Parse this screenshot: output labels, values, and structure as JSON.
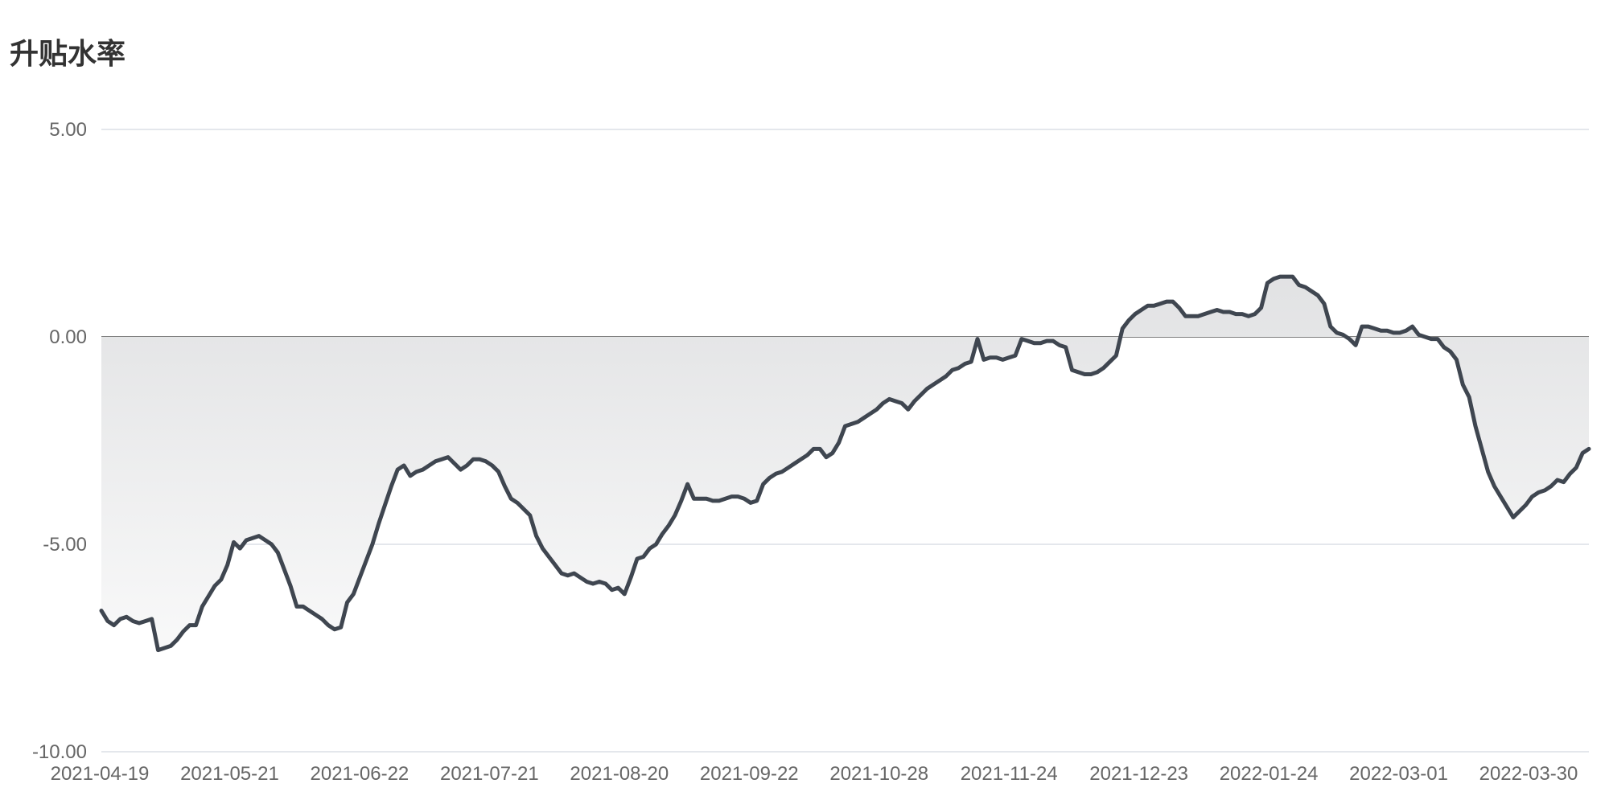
{
  "chart_data": {
    "type": "area",
    "title": "升贴水率",
    "xlabel": "",
    "ylabel": "",
    "ylim": [
      -10,
      5
    ],
    "yticks": [
      "5.00",
      "0.00",
      "-5.00",
      "-10.00"
    ],
    "ytick_values": [
      5,
      0,
      -5,
      -10
    ],
    "xticks": [
      "2021-04-19",
      "2021-05-21",
      "2021-06-22",
      "2021-07-21",
      "2021-08-20",
      "2021-09-22",
      "2021-10-28",
      "2021-11-24",
      "2021-12-23",
      "2022-01-24",
      "2022-03-01",
      "2022-03-30"
    ],
    "grid": true,
    "legend": "none",
    "colors": {
      "line": "#3f4650",
      "area_top": "#d8d9db",
      "area_bottom": "#ffffff",
      "grid": "#dcdfe6",
      "zero_line": "#555555"
    },
    "series": [
      {
        "values": [
          -6.6,
          -6.85,
          -6.95,
          -6.8,
          -6.75,
          -6.85,
          -6.9,
          -6.85,
          -6.8,
          -7.55,
          -7.5,
          -7.45,
          -7.3,
          -7.1,
          -6.95,
          -6.95,
          -6.5,
          -6.25,
          -6.0,
          -5.85,
          -5.5,
          -4.95,
          -5.1,
          -4.9,
          -4.85,
          -4.8,
          -4.9,
          -5.0,
          -5.2,
          -5.6,
          -6.0,
          -6.5,
          -6.5,
          -6.6,
          -6.7,
          -6.8,
          -6.95,
          -7.05,
          -7.0,
          -6.4,
          -6.2,
          -5.8,
          -5.4,
          -5.0,
          -4.5,
          -4.05,
          -3.6,
          -3.2,
          -3.1,
          -3.35,
          -3.25,
          -3.2,
          -3.1,
          -3.0,
          -2.95,
          -2.9,
          -3.05,
          -3.2,
          -3.1,
          -2.95,
          -2.95,
          -3.0,
          -3.1,
          -3.25,
          -3.6,
          -3.9,
          -4.0,
          -4.15,
          -4.3,
          -4.8,
          -5.1,
          -5.3,
          -5.5,
          -5.7,
          -5.75,
          -5.7,
          -5.8,
          -5.9,
          -5.95,
          -5.9,
          -5.95,
          -6.1,
          -6.05,
          -6.2,
          -5.8,
          -5.35,
          -5.3,
          -5.1,
          -5.0,
          -4.75,
          -4.55,
          -4.3,
          -3.95,
          -3.55,
          -3.9,
          -3.9,
          -3.9,
          -3.95,
          -3.95,
          -3.9,
          -3.85,
          -3.85,
          -3.9,
          -4.0,
          -3.95,
          -3.55,
          -3.4,
          -3.3,
          -3.25,
          -3.15,
          -3.05,
          -2.95,
          -2.85,
          -2.7,
          -2.7,
          -2.9,
          -2.8,
          -2.55,
          -2.15,
          -2.1,
          -2.05,
          -1.95,
          -1.85,
          -1.75,
          -1.6,
          -1.5,
          -1.55,
          -1.6,
          -1.75,
          -1.55,
          -1.4,
          -1.25,
          -1.15,
          -1.05,
          -0.95,
          -0.8,
          -0.75,
          -0.65,
          -0.6,
          -0.05,
          -0.55,
          -0.5,
          -0.5,
          -0.55,
          -0.5,
          -0.45,
          -0.05,
          -0.1,
          -0.15,
          -0.15,
          -0.1,
          -0.1,
          -0.2,
          -0.25,
          -0.8,
          -0.85,
          -0.9,
          -0.9,
          -0.85,
          -0.75,
          -0.6,
          -0.45,
          0.2,
          0.4,
          0.55,
          0.65,
          0.75,
          0.75,
          0.8,
          0.85,
          0.85,
          0.7,
          0.5,
          0.5,
          0.5,
          0.55,
          0.6,
          0.65,
          0.6,
          0.6,
          0.55,
          0.55,
          0.5,
          0.55,
          0.7,
          1.3,
          1.4,
          1.45,
          1.45,
          1.45,
          1.25,
          1.2,
          1.1,
          1.0,
          0.8,
          0.25,
          0.1,
          0.05,
          -0.05,
          -0.2,
          0.25,
          0.25,
          0.2,
          0.15,
          0.15,
          0.1,
          0.1,
          0.15,
          0.25,
          0.05,
          0.0,
          -0.05,
          -0.05,
          -0.25,
          -0.35,
          -0.55,
          -1.15,
          -1.45,
          -2.15,
          -2.7,
          -3.25,
          -3.6,
          -3.85,
          -4.1,
          -4.35,
          -4.2,
          -4.05,
          -3.85,
          -3.75,
          -3.7,
          -3.6,
          -3.45,
          -3.5,
          -3.3,
          -3.15,
          -2.8,
          -2.7
        ]
      }
    ]
  }
}
